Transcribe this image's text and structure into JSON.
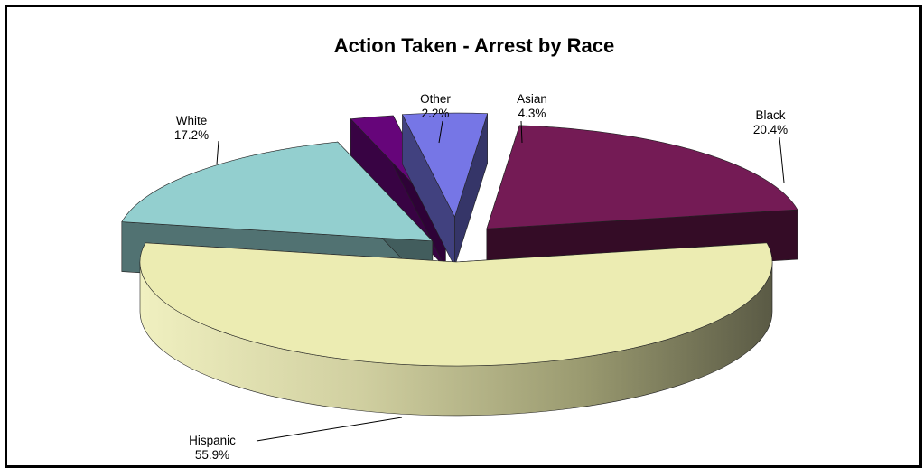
{
  "chart_data": {
    "type": "pie",
    "title": "Action Taken - Arrest by Race",
    "slices": [
      {
        "name": "Hispanic",
        "percent_label": "55.9%",
        "value": 55.9,
        "color": "#ececb2"
      },
      {
        "name": "White",
        "percent_label": "17.2%",
        "value": 17.2,
        "color": "#93cfcf"
      },
      {
        "name": "Other",
        "percent_label": "2.2%",
        "value": 2.2,
        "color": "#66057a"
      },
      {
        "name": "Asian",
        "percent_label": "4.3%",
        "value": 4.3,
        "color": "#7676e6"
      },
      {
        "name": "Black",
        "percent_label": "20.4%",
        "value": 20.4,
        "color": "#741b55"
      }
    ],
    "exploded": true,
    "three_d": true,
    "legend": "none"
  }
}
